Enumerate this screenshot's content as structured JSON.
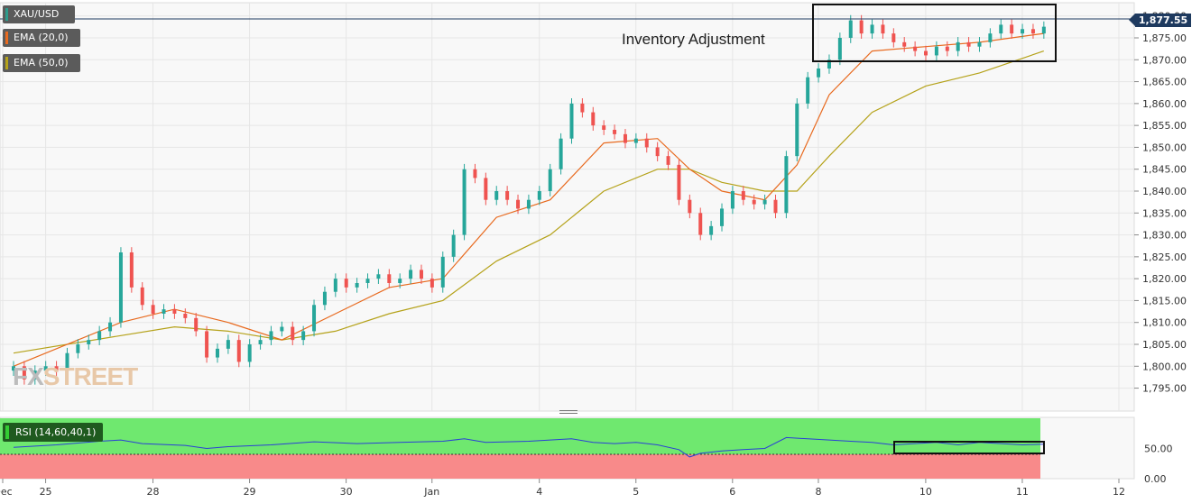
{
  "symbol": "XAU/USD",
  "indicators": [
    {
      "label": "EMA (20,0)",
      "color": "#e86a1f"
    },
    {
      "label": "EMA (50,0)",
      "color": "#b5a21a"
    }
  ],
  "rsi_label": "RSI (14,60,40,1)",
  "annotation": "Inventory Adjustment",
  "last_price": "1,877.55",
  "watermark": {
    "fx": "FX",
    "street": "STREET"
  },
  "colors": {
    "up": "#26a69a",
    "down": "#ef5350",
    "rsi_line": "#2a3fd6",
    "rsi_upper_zone": "#6fe86f",
    "rsi_lower_zone": "#f88a8a",
    "price_line": "#1e3a5f"
  },
  "chart_data": {
    "type": "candlestick",
    "ylim": [
      1791,
      1882
    ],
    "y_ticks": [
      "1,795.00",
      "1,800.00",
      "1,805.00",
      "1,810.00",
      "1,815.00",
      "1,820.00",
      "1,825.00",
      "1,830.00",
      "1,835.00",
      "1,840.00",
      "1,845.00",
      "1,850.00",
      "1,855.00",
      "1,860.00",
      "1,865.00",
      "1,870.00",
      "1,875.00",
      "1,880.00"
    ],
    "x_ticks": [
      {
        "label": "Dec",
        "x": 0
      },
      {
        "label": "25",
        "x": 4
      },
      {
        "label": "28",
        "x": 14
      },
      {
        "label": "29",
        "x": 23
      },
      {
        "label": "30",
        "x": 32
      },
      {
        "label": "Jan",
        "x": 40
      },
      {
        "label": "4",
        "x": 50
      },
      {
        "label": "5",
        "x": 59
      },
      {
        "label": "6",
        "x": 68
      },
      {
        "label": "8",
        "x": 76
      },
      {
        "label": "10",
        "x": 86
      },
      {
        "label": "11",
        "x": 95
      },
      {
        "label": "12",
        "x": 104
      }
    ],
    "price_series": [
      [
        0,
        1800
      ],
      [
        1,
        1797
      ],
      [
        2,
        1799
      ],
      [
        3,
        1800
      ],
      [
        4,
        1799
      ],
      [
        5,
        1803
      ],
      [
        6,
        1805
      ],
      [
        7,
        1806
      ],
      [
        8,
        1808
      ],
      [
        9,
        1810
      ],
      [
        10,
        1826
      ],
      [
        11,
        1818
      ],
      [
        12,
        1814
      ],
      [
        13,
        1812
      ],
      [
        14,
        1813
      ],
      [
        15,
        1812
      ],
      [
        16,
        1811
      ],
      [
        17,
        1808
      ],
      [
        18,
        1802
      ],
      [
        19,
        1804
      ],
      [
        20,
        1806
      ],
      [
        21,
        1801
      ],
      [
        22,
        1805
      ],
      [
        23,
        1806
      ],
      [
        24,
        1808
      ],
      [
        25,
        1809
      ],
      [
        26,
        1806
      ],
      [
        27,
        1808
      ],
      [
        28,
        1814
      ],
      [
        29,
        1817
      ],
      [
        30,
        1820
      ],
      [
        31,
        1818
      ],
      [
        32,
        1819
      ],
      [
        33,
        1820
      ],
      [
        34,
        1821
      ],
      [
        35,
        1819
      ],
      [
        36,
        1820
      ],
      [
        37,
        1822
      ],
      [
        38,
        1820
      ],
      [
        39,
        1818
      ],
      [
        40,
        1825
      ],
      [
        41,
        1830
      ],
      [
        42,
        1845
      ],
      [
        43,
        1843
      ],
      [
        44,
        1838
      ],
      [
        45,
        1840
      ],
      [
        46,
        1838
      ],
      [
        47,
        1836
      ],
      [
        48,
        1838
      ],
      [
        49,
        1840
      ],
      [
        50,
        1845
      ],
      [
        51,
        1852
      ],
      [
        52,
        1860
      ],
      [
        53,
        1858
      ],
      [
        54,
        1855
      ],
      [
        55,
        1854
      ],
      [
        56,
        1853
      ],
      [
        57,
        1851
      ],
      [
        58,
        1852
      ],
      [
        59,
        1850
      ],
      [
        60,
        1848
      ],
      [
        61,
        1846
      ],
      [
        62,
        1838
      ],
      [
        63,
        1835
      ],
      [
        64,
        1830
      ],
      [
        65,
        1832
      ],
      [
        66,
        1836
      ],
      [
        67,
        1840
      ],
      [
        68,
        1838
      ],
      [
        69,
        1837
      ],
      [
        70,
        1838
      ],
      [
        71,
        1835
      ],
      [
        72,
        1848
      ],
      [
        73,
        1860
      ],
      [
        74,
        1866
      ],
      [
        75,
        1868
      ],
      [
        76,
        1870
      ],
      [
        77,
        1875
      ],
      [
        78,
        1879
      ],
      [
        79,
        1876
      ],
      [
        80,
        1878
      ],
      [
        81,
        1876
      ],
      [
        82,
        1874
      ],
      [
        83,
        1873
      ],
      [
        84,
        1872
      ],
      [
        85,
        1871
      ],
      [
        86,
        1873
      ],
      [
        87,
        1872
      ],
      [
        88,
        1874
      ],
      [
        89,
        1873
      ],
      [
        90,
        1874
      ],
      [
        91,
        1876
      ],
      [
        92,
        1878
      ],
      [
        93,
        1876
      ],
      [
        94,
        1877
      ],
      [
        95,
        1876
      ],
      [
        96,
        1877.55
      ]
    ],
    "ema20": [
      [
        0,
        1800
      ],
      [
        10,
        1810
      ],
      [
        15,
        1813
      ],
      [
        20,
        1810
      ],
      [
        25,
        1806
      ],
      [
        30,
        1812
      ],
      [
        35,
        1818
      ],
      [
        40,
        1820
      ],
      [
        45,
        1834
      ],
      [
        50,
        1838
      ],
      [
        55,
        1851
      ],
      [
        60,
        1852
      ],
      [
        63,
        1845
      ],
      [
        66,
        1840
      ],
      [
        70,
        1838
      ],
      [
        73,
        1846
      ],
      [
        76,
        1862
      ],
      [
        80,
        1872
      ],
      [
        85,
        1873
      ],
      [
        90,
        1874
      ],
      [
        96,
        1876
      ]
    ],
    "ema50": [
      [
        0,
        1803
      ],
      [
        10,
        1807
      ],
      [
        15,
        1809
      ],
      [
        20,
        1808
      ],
      [
        25,
        1806
      ],
      [
        30,
        1808
      ],
      [
        35,
        1812
      ],
      [
        40,
        1815
      ],
      [
        45,
        1824
      ],
      [
        50,
        1830
      ],
      [
        55,
        1840
      ],
      [
        60,
        1845
      ],
      [
        63,
        1845
      ],
      [
        66,
        1842
      ],
      [
        70,
        1840
      ],
      [
        73,
        1840
      ],
      [
        76,
        1848
      ],
      [
        80,
        1858
      ],
      [
        85,
        1864
      ],
      [
        90,
        1867
      ],
      [
        96,
        1872
      ]
    ],
    "rsi": {
      "ylim": [
        0,
        100
      ],
      "y_ticks": [
        "0.00",
        "50.00"
      ],
      "upper": 60,
      "lower": 40,
      "series": [
        [
          0,
          52
        ],
        [
          4,
          56
        ],
        [
          8,
          62
        ],
        [
          10,
          64
        ],
        [
          12,
          58
        ],
        [
          16,
          55
        ],
        [
          18,
          50
        ],
        [
          20,
          53
        ],
        [
          24,
          56
        ],
        [
          28,
          61
        ],
        [
          32,
          58
        ],
        [
          36,
          60
        ],
        [
          40,
          62
        ],
        [
          42,
          66
        ],
        [
          44,
          60
        ],
        [
          48,
          62
        ],
        [
          50,
          64
        ],
        [
          52,
          66
        ],
        [
          54,
          60
        ],
        [
          56,
          58
        ],
        [
          58,
          60
        ],
        [
          60,
          56
        ],
        [
          62,
          48
        ],
        [
          63,
          36
        ],
        [
          64,
          42
        ],
        [
          66,
          46
        ],
        [
          68,
          48
        ],
        [
          70,
          50
        ],
        [
          72,
          68
        ],
        [
          74,
          66
        ],
        [
          76,
          64
        ],
        [
          78,
          62
        ],
        [
          80,
          60
        ],
        [
          82,
          56
        ],
        [
          84,
          58
        ],
        [
          86,
          60
        ],
        [
          88,
          56
        ],
        [
          90,
          60
        ],
        [
          92,
          58
        ],
        [
          94,
          56
        ],
        [
          96,
          57
        ]
      ]
    }
  }
}
